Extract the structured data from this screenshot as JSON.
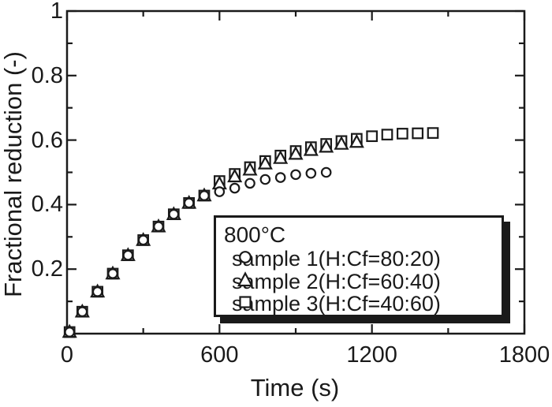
{
  "figure": {
    "background_color": "#ffffff",
    "ink_color": "#1a1a1a"
  },
  "chart_data": {
    "type": "scatter",
    "title": "",
    "xlabel": "Time (s)",
    "ylabel": "Fractional reduction (-)",
    "xlim": [
      0,
      1800
    ],
    "ylim": [
      0,
      1
    ],
    "grid": false,
    "tick_style": "inward ticks on all four frame sides",
    "x_major_ticks": [
      0,
      600,
      1200,
      1800
    ],
    "x_major_labels": [
      "0",
      "600",
      "1200",
      "1800"
    ],
    "x_minor_ticks": [
      300,
      900,
      1500
    ],
    "y_major_ticks": [
      0.2,
      0.4,
      0.6,
      0.8,
      1.0
    ],
    "y_major_labels": [
      "0.2",
      "0.4",
      "0.6",
      "0.8",
      "1"
    ],
    "y_minor_ticks": [
      0.1,
      0.3,
      0.5,
      0.7,
      0.9
    ],
    "legend_title": "800°C",
    "legend_position": "inside bottom-right",
    "series": [
      {
        "name": "sample 1(H:Cf=80:20)",
        "marker": "circle",
        "x": [
          10,
          60,
          120,
          180,
          240,
          300,
          360,
          420,
          480,
          540,
          600,
          660,
          720,
          780,
          840,
          900,
          960,
          1020
        ],
        "y": [
          0.005,
          0.068,
          0.13,
          0.186,
          0.243,
          0.29,
          0.332,
          0.37,
          0.405,
          0.428,
          0.44,
          0.451,
          0.466,
          0.478,
          0.484,
          0.493,
          0.497,
          0.5
        ]
      },
      {
        "name": "sample 2(H:Cf=60:40)",
        "marker": "triangle",
        "x": [
          10,
          60,
          120,
          180,
          240,
          300,
          360,
          420,
          480,
          540,
          600,
          660,
          720,
          780,
          840,
          900,
          960,
          1020,
          1080,
          1140
        ],
        "y": [
          0.005,
          0.068,
          0.13,
          0.186,
          0.243,
          0.29,
          0.332,
          0.37,
          0.405,
          0.428,
          0.465,
          0.487,
          0.508,
          0.527,
          0.544,
          0.557,
          0.569,
          0.579,
          0.588,
          0.594
        ]
      },
      {
        "name": "sample 3(H:Cf=40:60)",
        "marker": "square",
        "x": [
          10,
          60,
          120,
          180,
          240,
          300,
          360,
          420,
          480,
          540,
          600,
          660,
          720,
          780,
          840,
          900,
          960,
          1020,
          1080,
          1140,
          1200,
          1260,
          1320,
          1380,
          1440
        ],
        "y": [
          0.005,
          0.068,
          0.13,
          0.186,
          0.243,
          0.29,
          0.332,
          0.37,
          0.405,
          0.428,
          0.473,
          0.495,
          0.516,
          0.535,
          0.552,
          0.566,
          0.578,
          0.588,
          0.597,
          0.604,
          0.612,
          0.617,
          0.62,
          0.621,
          0.622
        ]
      }
    ]
  }
}
